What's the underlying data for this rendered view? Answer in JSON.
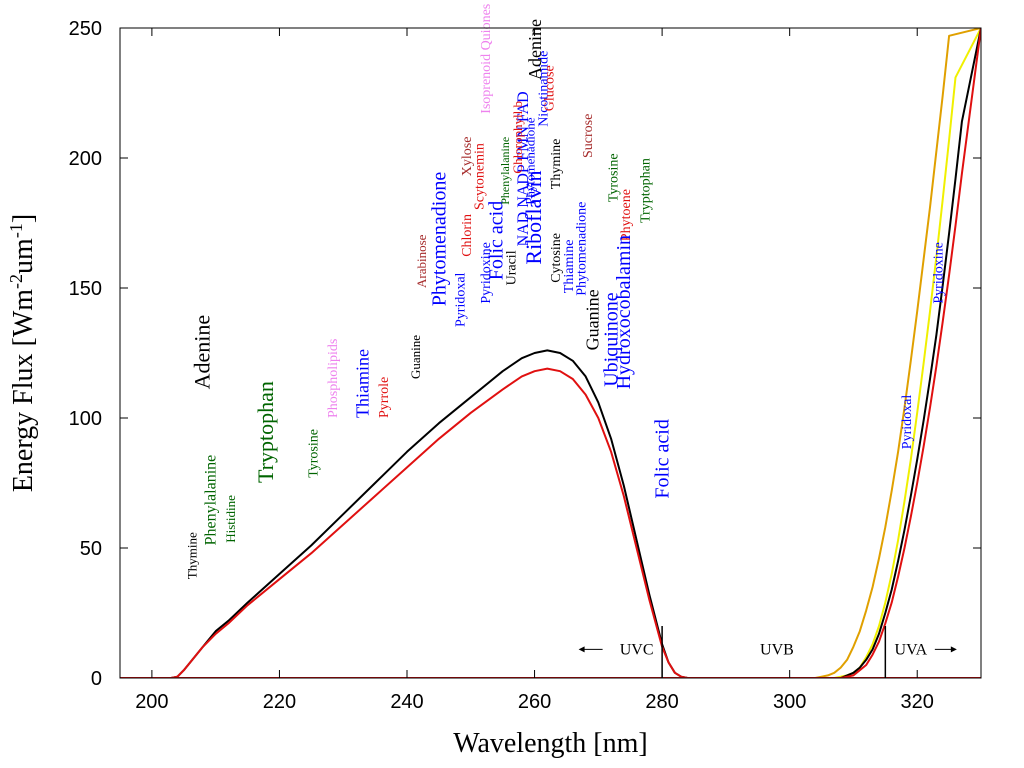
{
  "chart_data": {
    "type": "line",
    "title": "",
    "xlabel": "Wavelength [nm]",
    "ylabel_parts": [
      "Energy Flux [Wm",
      "-2",
      "um",
      "-1",
      "]"
    ],
    "xlim": [
      195,
      330
    ],
    "ylim": [
      0,
      250
    ],
    "x_ticks": [
      200,
      220,
      240,
      260,
      280,
      300,
      320
    ],
    "y_ticks": [
      0,
      50,
      100,
      150,
      200,
      250
    ],
    "grid": false,
    "series": [
      {
        "color": "#000000",
        "x": [
          195,
          203,
          204,
          205,
          206,
          208,
          210,
          212,
          215,
          220,
          225,
          230,
          235,
          240,
          245,
          250,
          255,
          258,
          260,
          262,
          264,
          266,
          268,
          270,
          272,
          274,
          276,
          278,
          280,
          281,
          282,
          283,
          284,
          285,
          300,
          330
        ],
        "y": [
          0,
          0,
          0.5,
          3,
          6,
          12,
          18,
          22,
          29,
          40,
          51,
          63,
          75,
          87,
          98,
          108,
          118,
          123,
          125,
          126,
          125,
          122,
          116,
          106,
          92,
          74,
          53,
          32,
          13,
          6,
          2,
          0.5,
          0,
          0,
          0,
          0
        ]
      },
      {
        "color": "#e01010",
        "x": [
          195,
          203,
          204,
          205,
          206,
          208,
          210,
          212,
          215,
          220,
          225,
          230,
          235,
          240,
          245,
          250,
          255,
          258,
          260,
          262,
          264,
          266,
          268,
          270,
          272,
          274,
          276,
          278,
          280,
          281,
          282,
          283,
          284,
          285,
          300,
          330
        ],
        "y": [
          0,
          0,
          0.5,
          3,
          6,
          12,
          17,
          21,
          28,
          38,
          48,
          59,
          70,
          81,
          92,
          102,
          111,
          116,
          118,
          119,
          118,
          115,
          109,
          100,
          87,
          70,
          50,
          30,
          12,
          6,
          2,
          0.5,
          0,
          0,
          0,
          0
        ]
      },
      {
        "color": "#e0a000",
        "x": [
          195,
          304,
          305,
          306,
          307,
          308,
          309,
          310,
          311,
          312,
          313,
          314,
          315,
          316,
          317,
          318,
          319,
          320,
          322,
          324,
          325,
          330
        ],
        "y": [
          0,
          0,
          0.5,
          1,
          2,
          4,
          7,
          12,
          18,
          26,
          35,
          46,
          58,
          72,
          87,
          104,
          122,
          141,
          181,
          224,
          247,
          250
        ]
      },
      {
        "color": "#f0f000",
        "x": [
          195,
          307,
          308,
          309,
          310,
          311,
          312,
          313,
          314,
          315,
          316,
          317,
          318,
          319,
          320,
          321,
          322,
          323,
          324,
          325,
          326,
          330
        ],
        "y": [
          0,
          0,
          0.5,
          1,
          2,
          4,
          8,
          13,
          20,
          29,
          40,
          53,
          68,
          84,
          102,
          121,
          141,
          162,
          184,
          207,
          231,
          250
        ]
      },
      {
        "color": "#000000",
        "x": [
          195,
          308,
          309,
          310,
          311,
          312,
          313,
          314,
          315,
          316,
          317,
          318,
          319,
          320,
          321,
          322,
          323,
          324,
          325,
          326,
          327,
          330
        ],
        "y": [
          0,
          0,
          1,
          2,
          4,
          7,
          11,
          17,
          25,
          34,
          45,
          57,
          70,
          84,
          99,
          115,
          132,
          151,
          171,
          192,
          214,
          250
        ]
      },
      {
        "color": "#e01010",
        "x": [
          195,
          308,
          309,
          310,
          311,
          312,
          313,
          314,
          315,
          316,
          317,
          318,
          319,
          320,
          321,
          322,
          323,
          324,
          325,
          326,
          327,
          330
        ],
        "y": [
          0,
          0,
          0.5,
          1,
          3,
          5,
          9,
          14,
          21,
          29,
          39,
          50,
          62,
          75,
          89,
          104,
          120,
          137,
          155,
          174,
          194,
          250
        ]
      }
    ],
    "band_lines": [
      280,
      315
    ],
    "band_labels": [
      {
        "text": "UVC",
        "x": 276,
        "y": 11,
        "arrow": "left"
      },
      {
        "text": "UVB",
        "x": 298,
        "y": 11,
        "arrow": "none"
      },
      {
        "text": "UVA",
        "x": 319,
        "y": 11,
        "arrow": "right"
      }
    ],
    "annotations": [
      {
        "text": "Thymine",
        "x": 207,
        "y": 38,
        "color": "#000000",
        "size": 13
      },
      {
        "text": "Phenylalanine",
        "x": 210,
        "y": 51,
        "color": "#006400",
        "size": 16
      },
      {
        "text": "Histidine",
        "x": 213,
        "y": 52,
        "color": "#006400",
        "size": 13
      },
      {
        "text": "Adenine",
        "x": 209,
        "y": 111,
        "color": "#000000",
        "size": 22
      },
      {
        "text": "Tryptophan",
        "x": 219,
        "y": 75,
        "color": "#006400",
        "size": 22
      },
      {
        "text": "Tyrosine",
        "x": 226,
        "y": 77,
        "color": "#006400",
        "size": 14
      },
      {
        "text": "Phospholipids",
        "x": 229,
        "y": 100,
        "color": "#ee82ee",
        "size": 14
      },
      {
        "text": "Thiamine",
        "x": 234,
        "y": 100,
        "color": "#0000ff",
        "size": 18
      },
      {
        "text": "Pyrrole",
        "x": 237,
        "y": 100,
        "color": "#e01010",
        "size": 14
      },
      {
        "text": "Guanine",
        "x": 242,
        "y": 115,
        "color": "#000000",
        "size": 13
      },
      {
        "text": "Arabinose",
        "x": 243,
        "y": 150,
        "color": "#a52a2a",
        "size": 13
      },
      {
        "text": "Phytomenadione",
        "x": 246,
        "y": 143,
        "color": "#0000ff",
        "size": 20
      },
      {
        "text": "Pyridoxal",
        "x": 249,
        "y": 135,
        "color": "#0000ff",
        "size": 14
      },
      {
        "text": "Chlorin",
        "x": 250,
        "y": 162,
        "color": "#e01010",
        "size": 14
      },
      {
        "text": "Xylose",
        "x": 250,
        "y": 193,
        "color": "#a52a2a",
        "size": 14
      },
      {
        "text": "Scytonemin",
        "x": 252,
        "y": 180,
        "color": "#e01010",
        "size": 14
      },
      {
        "text": "Pyridoxine",
        "x": 253,
        "y": 144,
        "color": "#0000ff",
        "size": 14
      },
      {
        "text": "Folic acid",
        "x": 255,
        "y": 153,
        "color": "#0000ff",
        "size": 20
      },
      {
        "text": "Isoprenoid Quiones",
        "x": 253,
        "y": 217,
        "color": "#ee82ee",
        "size": 14
      },
      {
        "text": "Phenylalanine",
        "x": 256,
        "y": 182,
        "color": "#006400",
        "size": 12
      },
      {
        "text": "Uracil",
        "x": 257,
        "y": 151,
        "color": "#000000",
        "size": 14
      },
      {
        "text": "NAD NADP FMN FAD",
        "x": 259,
        "y": 166,
        "color": "#0000ff",
        "size": 16
      },
      {
        "text": "Chlorophyll b",
        "x": 258,
        "y": 194,
        "color": "#e01010",
        "size": 13
      },
      {
        "text": "Riboflavin",
        "x": 261,
        "y": 159,
        "color": "#0000ff",
        "size": 22
      },
      {
        "text": "Phytomenadione",
        "x": 260,
        "y": 182,
        "color": "#0000ff",
        "size": 13
      },
      {
        "text": "Nicotinamide",
        "x": 262,
        "y": 212,
        "color": "#0000ff",
        "size": 14
      },
      {
        "text": "Adenine",
        "x": 261,
        "y": 230,
        "color": "#000000",
        "size": 18
      },
      {
        "text": "Glucose",
        "x": 263,
        "y": 218,
        "color": "#e01010",
        "size": 14
      },
      {
        "text": "Cytosine",
        "x": 264,
        "y": 152,
        "color": "#000000",
        "size": 14
      },
      {
        "text": "Thymine",
        "x": 264,
        "y": 188,
        "color": "#000000",
        "size": 14
      },
      {
        "text": "Thiamine",
        "x": 266,
        "y": 148,
        "color": "#0000ff",
        "size": 14
      },
      {
        "text": "Phytomenadione",
        "x": 268,
        "y": 147,
        "color": "#0000ff",
        "size": 14
      },
      {
        "text": "Sucrose",
        "x": 269,
        "y": 200,
        "color": "#a52a2a",
        "size": 14
      },
      {
        "text": "Guanine",
        "x": 270,
        "y": 126,
        "color": "#000000",
        "size": 18
      },
      {
        "text": "Tyrosine",
        "x": 273,
        "y": 183,
        "color": "#006400",
        "size": 14
      },
      {
        "text": "Ubiquinone",
        "x": 273,
        "y": 112,
        "color": "#0000ff",
        "size": 20
      },
      {
        "text": "Phytoene",
        "x": 275,
        "y": 168,
        "color": "#e01010",
        "size": 14
      },
      {
        "text": "Hydroxocobalamin",
        "x": 275,
        "y": 111,
        "color": "#0000ff",
        "size": 20
      },
      {
        "text": "Tryptophan",
        "x": 278,
        "y": 175,
        "color": "#006400",
        "size": 14
      },
      {
        "text": "Folic acid",
        "x": 281,
        "y": 69,
        "color": "#0000ff",
        "size": 20
      },
      {
        "text": "Pyridoxal",
        "x": 319,
        "y": 88,
        "color": "#0000ff",
        "size": 14
      },
      {
        "text": "Pyridoxine",
        "x": 324,
        "y": 144,
        "color": "#0000ff",
        "size": 14
      }
    ]
  }
}
